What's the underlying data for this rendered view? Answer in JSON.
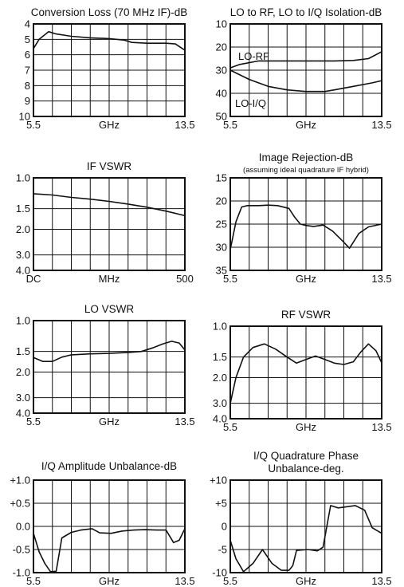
{
  "chart_data": [
    {
      "id": "conversion-loss",
      "type": "line",
      "title": "Conversion Loss (70 MHz IF)-dB",
      "subtitle": "",
      "xlabel": "GHz",
      "xlim": [
        5.5,
        13.5
      ],
      "x_tick_labels": [
        "5.5",
        "13.5"
      ],
      "ylim": [
        4,
        10
      ],
      "y_inverted": true,
      "y_tick_labels": [
        "4",
        "5",
        "6",
        "7",
        "8",
        "9",
        "10"
      ],
      "grid": true,
      "series": [
        {
          "name": "",
          "x": [
            5.5,
            5.8,
            6.3,
            6.7,
            7.5,
            8.5,
            9.5,
            10.3,
            10.7,
            11.5,
            12.5,
            13.0,
            13.5
          ],
          "y": [
            5.6,
            5.0,
            4.5,
            4.65,
            4.8,
            4.9,
            4.95,
            5.05,
            5.2,
            5.25,
            5.25,
            5.3,
            5.7
          ]
        }
      ],
      "annotations": []
    },
    {
      "id": "lo-isolation",
      "type": "line",
      "title": "LO to RF, LO to I/Q Isolation-dB",
      "subtitle": "",
      "xlabel": "GHz",
      "xlim": [
        5.5,
        13.5
      ],
      "x_tick_labels": [
        "5.5",
        "13.5"
      ],
      "ylim": [
        10,
        50
      ],
      "y_inverted": true,
      "y_tick_labels": [
        "10",
        "20",
        "30",
        "40",
        "50"
      ],
      "grid": true,
      "series": [
        {
          "name": "LO-RF",
          "x": [
            5.5,
            6.0,
            7.0,
            8.0,
            9.0,
            10.0,
            11.0,
            12.0,
            12.8,
            13.5
          ],
          "y": [
            29,
            27.5,
            26,
            26,
            26,
            26,
            26,
            25.8,
            25,
            22
          ]
        },
        {
          "name": "LO-I/Q",
          "x": [
            5.5,
            6.5,
            7.5,
            8.5,
            9.5,
            10.5,
            11.0,
            12.0,
            13.0,
            13.5
          ],
          "y": [
            30,
            34,
            37,
            38.5,
            39.2,
            39.2,
            38.5,
            37,
            35.5,
            34.5
          ]
        }
      ],
      "annotations": []
    },
    {
      "id": "if-vswr",
      "type": "line",
      "title": "IF VSWR",
      "subtitle": "",
      "xlabel": "MHz",
      "xlim": [
        0,
        500
      ],
      "x_tick_labels": [
        "DC",
        "500"
      ],
      "ylim": [
        1.0,
        4.0
      ],
      "y_scale": "reflection",
      "y_inverted": true,
      "y_tick_labels": [
        "1.0",
        "1.5",
        "2.0",
        "3.0",
        "4.0"
      ],
      "grid": true,
      "series": [
        {
          "name": "",
          "x": [
            0,
            62.5,
            125,
            187.5,
            250,
            312.5,
            375,
            437.5,
            500
          ],
          "y": [
            1.23,
            1.25,
            1.29,
            1.32,
            1.36,
            1.41,
            1.47,
            1.55,
            1.65
          ]
        }
      ],
      "annotations": []
    },
    {
      "id": "image-rejection",
      "type": "line",
      "title": "Image Rejection-dB",
      "subtitle": "(assuming ideal quadrature IF hybrid)",
      "xlabel": "GHz",
      "xlim": [
        5.5,
        13.5
      ],
      "x_tick_labels": [
        "5.5",
        "13.5"
      ],
      "ylim": [
        15,
        35
      ],
      "y_inverted": true,
      "y_tick_labels": [
        "15",
        "20",
        "25",
        "30",
        "35"
      ],
      "grid": true,
      "series": [
        {
          "name": "",
          "x": [
            5.5,
            5.8,
            6.1,
            6.4,
            7.0,
            7.5,
            8.0,
            8.6,
            8.9,
            9.2,
            9.5,
            9.9,
            10.4,
            10.9,
            11.4,
            11.8,
            12.3,
            12.8,
            13.5
          ],
          "y": [
            30.5,
            24.5,
            21.3,
            21.0,
            21.0,
            20.9,
            21.0,
            21.6,
            23.5,
            25.0,
            25.3,
            25.5,
            25.2,
            26.5,
            28.5,
            30.2,
            27.0,
            25.6,
            25.0
          ]
        }
      ],
      "annotations": []
    },
    {
      "id": "lo-vswr",
      "type": "line",
      "title": "LO VSWR",
      "subtitle": "",
      "xlabel": "GHz",
      "xlim": [
        5.5,
        13.5
      ],
      "x_tick_labels": [
        "5.5",
        "13.5"
      ],
      "ylim": [
        1.0,
        4.0
      ],
      "y_scale": "reflection",
      "y_inverted": true,
      "y_tick_labels": [
        "1.0",
        "1.5",
        "2.0",
        "3.0",
        "4.0"
      ],
      "grid": true,
      "series": [
        {
          "name": "",
          "x": [
            5.5,
            6.0,
            6.5,
            7.0,
            7.5,
            8.5,
            9.5,
            10.5,
            11.2,
            11.8,
            12.3,
            12.8,
            13.2,
            13.5
          ],
          "y": [
            1.63,
            1.72,
            1.72,
            1.62,
            1.57,
            1.55,
            1.54,
            1.52,
            1.5,
            1.43,
            1.36,
            1.31,
            1.34,
            1.47
          ]
        }
      ],
      "annotations": []
    },
    {
      "id": "rf-vswr",
      "type": "line",
      "title": "RF VSWR",
      "subtitle": "",
      "xlabel": "GHz",
      "xlim": [
        5.5,
        13.5
      ],
      "x_tick_labels": [
        "5.5",
        "13.5"
      ],
      "ylim": [
        1.0,
        4.0
      ],
      "y_scale": "reflection",
      "y_inverted": true,
      "y_tick_labels": [
        "1.0",
        "1.5",
        "2.0",
        "3.0",
        "4.0"
      ],
      "grid": true,
      "series": [
        {
          "name": "",
          "x": [
            5.5,
            5.8,
            6.2,
            6.7,
            7.3,
            7.9,
            8.5,
            9.0,
            9.5,
            10.0,
            10.5,
            11.0,
            11.5,
            12.0,
            12.4,
            12.8,
            13.2,
            13.5
          ],
          "y": [
            3.0,
            2.0,
            1.5,
            1.32,
            1.26,
            1.35,
            1.5,
            1.63,
            1.55,
            1.48,
            1.55,
            1.63,
            1.66,
            1.6,
            1.4,
            1.26,
            1.38,
            1.62
          ]
        }
      ],
      "annotations": []
    },
    {
      "id": "iq-amplitude-unbalance",
      "type": "line",
      "title": "I/Q Amplitude Unbalance-dB",
      "subtitle": "",
      "xlabel": "GHz",
      "xlim": [
        5.5,
        13.5
      ],
      "x_tick_labels": [
        "5.5",
        "13.5"
      ],
      "ylim": [
        -1.0,
        1.0
      ],
      "y_inverted": false,
      "y_tick_labels": [
        "+1.0",
        "+0.5",
        "0.0",
        "-0.5",
        "-1.0"
      ],
      "grid": true,
      "series": [
        {
          "name": "",
          "x": [
            5.5,
            5.8,
            6.1,
            6.4,
            6.7,
            7.0,
            7.5,
            8.0,
            8.6,
            9.0,
            9.6,
            10.2,
            10.8,
            11.4,
            12.0,
            12.5,
            12.9,
            13.2,
            13.5
          ],
          "y": [
            -0.15,
            -0.55,
            -0.8,
            -0.98,
            -0.97,
            -0.25,
            -0.13,
            -0.08,
            -0.05,
            -0.14,
            -0.15,
            -0.1,
            -0.08,
            -0.07,
            -0.08,
            -0.08,
            -0.35,
            -0.3,
            -0.05
          ]
        }
      ],
      "annotations": []
    },
    {
      "id": "iq-quadrature-phase-unbalance",
      "type": "line",
      "title": "I/Q Quadrature Phase",
      "subtitle": "Unbalance-deg.",
      "xlabel": "GHz",
      "xlim": [
        5.5,
        13.5
      ],
      "x_tick_labels": [
        "5.5",
        "13.5"
      ],
      "ylim": [
        -10,
        10
      ],
      "y_inverted": false,
      "y_tick_labels": [
        "+10",
        "+5",
        "0",
        "-5",
        "-10"
      ],
      "grid": true,
      "series": [
        {
          "name": "",
          "x": [
            5.5,
            5.8,
            6.2,
            6.7,
            7.2,
            7.7,
            8.2,
            8.6,
            8.8,
            9.0,
            9.6,
            10.1,
            10.4,
            10.8,
            11.2,
            11.6,
            12.1,
            12.6,
            13.0,
            13.5
          ],
          "y": [
            -3.0,
            -7.0,
            -9.8,
            -8.0,
            -5.0,
            -8.0,
            -9.5,
            -9.5,
            -8.5,
            -5.2,
            -5.0,
            -5.3,
            -4.5,
            4.5,
            4.0,
            4.2,
            4.5,
            3.5,
            -0.3,
            -1.5
          ]
        }
      ],
      "annotations": []
    }
  ],
  "lo_isolation_labels": {
    "lo_rf": "LO-RF",
    "lo_iq": "LO-I/Q"
  }
}
